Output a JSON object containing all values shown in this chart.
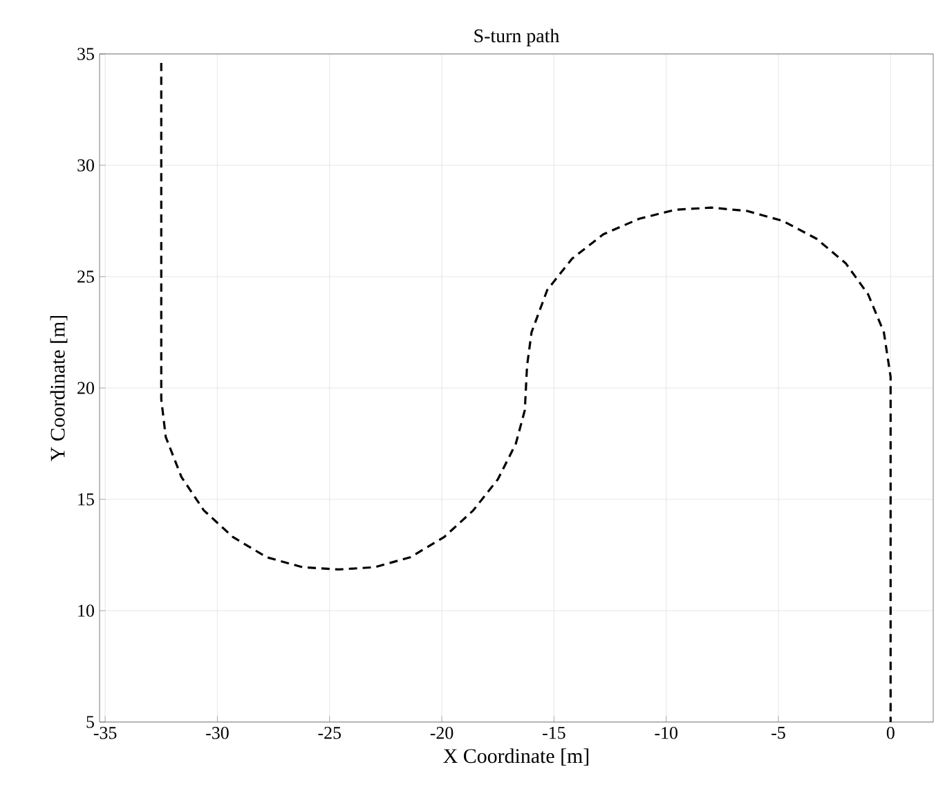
{
  "chart_data": {
    "type": "line",
    "title": "S-turn path",
    "xlabel": "X Coordinate [m]",
    "ylabel": "Y Coordinate [m]",
    "xlim": [
      -35.25,
      1.9
    ],
    "ylim": [
      5,
      35
    ],
    "xticks": [
      -35,
      -30,
      -25,
      -20,
      -15,
      -10,
      -5,
      0
    ],
    "yticks": [
      5,
      10,
      15,
      20,
      25,
      30,
      35
    ],
    "grid": true,
    "line_style": "dashed",
    "marker": "none",
    "series": [
      {
        "color": "#000000",
        "x": [
          -32.5,
          -32.5,
          -32.3,
          -31.6,
          -30.6,
          -29.3,
          -27.8,
          -26.2,
          -24.6,
          -23.0,
          -21.4,
          -19.9,
          -18.6,
          -17.5,
          -16.7,
          -16.3,
          -16.2,
          -16.0,
          -15.3,
          -14.2,
          -12.8,
          -11.2,
          -9.6,
          -8.0,
          -6.4,
          -4.8,
          -3.3,
          -2.0,
          -1.0,
          -0.3,
          0,
          0
        ],
        "values": [
          34.6,
          19.5,
          17.8,
          16.0,
          14.5,
          13.3,
          12.4,
          11.95,
          11.85,
          11.95,
          12.4,
          13.3,
          14.5,
          15.9,
          17.5,
          19.0,
          21.0,
          22.5,
          24.4,
          25.8,
          26.9,
          27.6,
          28.0,
          28.1,
          27.95,
          27.5,
          26.7,
          25.6,
          24.2,
          22.5,
          20.5,
          5
        ]
      }
    ]
  }
}
